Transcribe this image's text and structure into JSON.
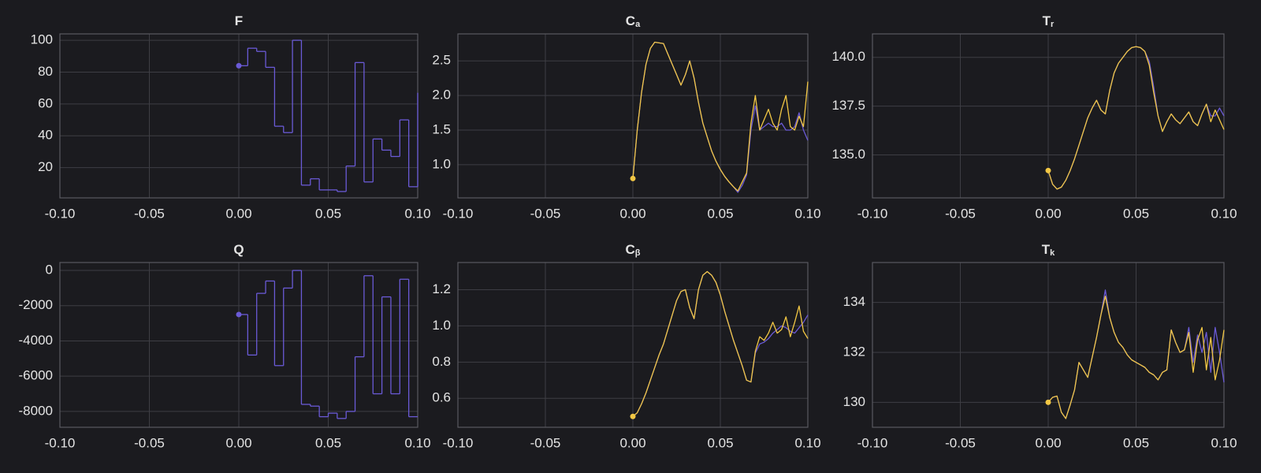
{
  "chart_data": [
    {
      "type": "line",
      "title": "F",
      "step": true,
      "x": [
        0,
        0.005,
        0.01,
        0.015,
        0.02,
        0.025,
        0.03,
        0.035,
        0.04,
        0.045,
        0.05,
        0.055,
        0.06,
        0.065,
        0.07,
        0.075,
        0.08,
        0.085,
        0.09,
        0.095,
        0.1
      ],
      "series": [
        {
          "color": "#6a5ad6",
          "values": [
            84,
            95,
            93,
            83,
            46,
            42,
            100,
            9,
            13,
            6,
            6,
            5,
            21,
            86,
            11,
            38,
            31,
            27,
            50,
            8,
            67
          ]
        }
      ],
      "xlim": [
        -0.1,
        0.1
      ],
      "xticks": [
        {
          "value": -0.1,
          "label": "-0.10"
        },
        -0.05,
        {
          "value": 0,
          "label": "0.00"
        },
        0.05,
        {
          "value": 0.1,
          "label": "0.10"
        }
      ],
      "ylim": [
        1,
        104
      ],
      "yticks": [
        20,
        40,
        60,
        80,
        100
      ],
      "grid": true
    },
    {
      "type": "line",
      "title": "C",
      "subscript": "a",
      "x": [
        0,
        0.0025,
        0.005,
        0.0075,
        0.01,
        0.0125,
        0.015,
        0.0175,
        0.02,
        0.0225,
        0.025,
        0.0275,
        0.03,
        0.0325,
        0.035,
        0.0375,
        0.04,
        0.0425,
        0.045,
        0.0475,
        0.05,
        0.0525,
        0.055,
        0.0575,
        0.06,
        0.0625,
        0.065,
        0.0675,
        0.07,
        0.0725,
        0.075,
        0.0775,
        0.08,
        0.0825,
        0.085,
        0.0875,
        0.09,
        0.0925,
        0.095,
        0.0975,
        0.1
      ],
      "series": [
        {
          "color": "#6a5ad6",
          "values": [
            0.8,
            1.5,
            2.05,
            2.45,
            2.68,
            2.77,
            2.76,
            2.75,
            2.6,
            2.45,
            2.3,
            2.15,
            2.3,
            2.5,
            2.25,
            1.9,
            1.6,
            1.4,
            1.2,
            1.05,
            0.93,
            0.83,
            0.75,
            0.68,
            0.6,
            0.7,
            0.85,
            1.5,
            1.85,
            1.5,
            1.55,
            1.6,
            1.55,
            1.55,
            1.6,
            1.5,
            1.5,
            1.55,
            1.75,
            1.5,
            1.35
          ]
        },
        {
          "color": "#f2c744",
          "values": [
            0.8,
            1.5,
            2.05,
            2.45,
            2.68,
            2.77,
            2.76,
            2.75,
            2.6,
            2.45,
            2.3,
            2.15,
            2.3,
            2.5,
            2.25,
            1.9,
            1.6,
            1.4,
            1.2,
            1.05,
            0.93,
            0.83,
            0.75,
            0.68,
            0.62,
            0.75,
            0.88,
            1.6,
            2.0,
            1.5,
            1.65,
            1.8,
            1.6,
            1.5,
            1.8,
            2.0,
            1.55,
            1.5,
            1.7,
            1.55,
            2.2
          ]
        }
      ],
      "xlim": [
        -0.1,
        0.1
      ],
      "xticks": [
        {
          "value": -0.1,
          "label": "-0.10"
        },
        -0.05,
        {
          "value": 0,
          "label": "0.00"
        },
        0.05,
        {
          "value": 0.1,
          "label": "0.10"
        }
      ],
      "ylim": [
        0.52,
        2.89
      ],
      "yticks": [
        {
          "value": 1,
          "label": "1.0"
        },
        1.5,
        {
          "value": 2,
          "label": "2.0"
        },
        2.5
      ],
      "grid": true
    },
    {
      "type": "line",
      "title": "T",
      "subscript": "r",
      "x": [
        0,
        0.0025,
        0.005,
        0.0075,
        0.01,
        0.0125,
        0.015,
        0.0175,
        0.02,
        0.0225,
        0.025,
        0.0275,
        0.03,
        0.0325,
        0.035,
        0.0375,
        0.04,
        0.0425,
        0.045,
        0.0475,
        0.05,
        0.0525,
        0.055,
        0.0575,
        0.06,
        0.0625,
        0.065,
        0.0675,
        0.07,
        0.0725,
        0.075,
        0.0775,
        0.08,
        0.0825,
        0.085,
        0.0875,
        0.09,
        0.0925,
        0.095,
        0.0975,
        0.1
      ],
      "series": [
        {
          "color": "#6a5ad6",
          "values": [
            134.2,
            133.5,
            133.25,
            133.35,
            133.7,
            134.2,
            134.8,
            135.5,
            136.2,
            136.9,
            137.4,
            137.8,
            137.3,
            137.1,
            138.3,
            139.2,
            139.7,
            140.0,
            140.3,
            140.5,
            140.55,
            140.5,
            140.3,
            139.8,
            138.5,
            137.0,
            136.2,
            136.7,
            137.1,
            136.8,
            136.6,
            136.9,
            137.2,
            136.7,
            136.5,
            137.1,
            137.6,
            137.0,
            137.0,
            137.4,
            137.0
          ]
        },
        {
          "color": "#f2c744",
          "values": [
            134.2,
            133.5,
            133.25,
            133.35,
            133.7,
            134.2,
            134.8,
            135.5,
            136.2,
            136.9,
            137.4,
            137.8,
            137.3,
            137.1,
            138.3,
            139.2,
            139.7,
            140.0,
            140.3,
            140.5,
            140.55,
            140.5,
            140.3,
            139.6,
            138.2,
            137.0,
            136.2,
            136.7,
            137.1,
            136.8,
            136.6,
            136.9,
            137.2,
            136.7,
            136.5,
            137.1,
            137.6,
            136.7,
            137.3,
            136.8,
            136.3
          ]
        }
      ],
      "xlim": [
        -0.1,
        0.1
      ],
      "xticks": [
        {
          "value": -0.1,
          "label": "-0.10"
        },
        -0.05,
        {
          "value": 0,
          "label": "0.00"
        },
        0.05,
        {
          "value": 0.1,
          "label": "0.10"
        }
      ],
      "ylim": [
        132.8,
        141.2
      ],
      "yticks": [
        {
          "value": 135,
          "label": "135.0"
        },
        137.5,
        {
          "value": 140,
          "label": "140.0"
        }
      ],
      "grid": true
    },
    {
      "type": "line",
      "title": "Q",
      "step": true,
      "x": [
        0,
        0.005,
        0.01,
        0.015,
        0.02,
        0.025,
        0.03,
        0.035,
        0.04,
        0.045,
        0.05,
        0.055,
        0.06,
        0.065,
        0.07,
        0.075,
        0.08,
        0.085,
        0.09,
        0.095,
        0.1
      ],
      "series": [
        {
          "color": "#6a5ad6",
          "values": [
            -2500,
            -4800,
            -1300,
            -600,
            -5400,
            -1000,
            0,
            -7600,
            -7700,
            -8300,
            -8100,
            -8400,
            -8000,
            -4900,
            -300,
            -7000,
            -1500,
            -7000,
            -500,
            -8300,
            -8300
          ]
        }
      ],
      "xlim": [
        -0.1,
        0.1
      ],
      "xticks": [
        {
          "value": -0.1,
          "label": "-0.10"
        },
        -0.05,
        {
          "value": 0,
          "label": "0.00"
        },
        0.05,
        {
          "value": 0.1,
          "label": "0.10"
        }
      ],
      "ylim": [
        -8900,
        450
      ],
      "yticks": [
        -8000,
        -6000,
        -4000,
        -2000,
        0
      ],
      "grid": true
    },
    {
      "type": "line",
      "title": "C",
      "subscript": "β",
      "x": [
        0,
        0.0025,
        0.005,
        0.0075,
        0.01,
        0.0125,
        0.015,
        0.0175,
        0.02,
        0.0225,
        0.025,
        0.0275,
        0.03,
        0.0325,
        0.035,
        0.0375,
        0.04,
        0.0425,
        0.045,
        0.0475,
        0.05,
        0.0525,
        0.055,
        0.0575,
        0.06,
        0.0625,
        0.065,
        0.0675,
        0.07,
        0.0725,
        0.075,
        0.0775,
        0.08,
        0.0825,
        0.085,
        0.0875,
        0.09,
        0.0925,
        0.095,
        0.0975,
        0.1
      ],
      "series": [
        {
          "color": "#6a5ad6",
          "values": [
            0.5,
            0.52,
            0.57,
            0.63,
            0.7,
            0.77,
            0.84,
            0.9,
            0.98,
            1.06,
            1.14,
            1.19,
            1.2,
            1.1,
            1.04,
            1.2,
            1.28,
            1.3,
            1.28,
            1.24,
            1.17,
            1.08,
            1.0,
            0.92,
            0.85,
            0.78,
            0.7,
            0.69,
            0.85,
            0.9,
            0.91,
            0.93,
            0.96,
            0.98,
            1.0,
            0.99,
            0.97,
            0.96,
            0.99,
            1.02,
            1.06
          ]
        },
        {
          "color": "#f2c744",
          "values": [
            0.5,
            0.52,
            0.57,
            0.63,
            0.7,
            0.77,
            0.84,
            0.9,
            0.98,
            1.06,
            1.14,
            1.19,
            1.2,
            1.1,
            1.04,
            1.2,
            1.28,
            1.3,
            1.28,
            1.24,
            1.17,
            1.08,
            1.0,
            0.92,
            0.85,
            0.78,
            0.7,
            0.69,
            0.86,
            0.94,
            0.92,
            0.96,
            1.02,
            0.96,
            0.98,
            1.05,
            0.94,
            1.02,
            1.11,
            0.97,
            0.93
          ]
        }
      ],
      "xlim": [
        -0.1,
        0.1
      ],
      "xticks": [
        {
          "value": -0.1,
          "label": "-0.10"
        },
        -0.05,
        {
          "value": 0,
          "label": "0.00"
        },
        0.05,
        {
          "value": 0.1,
          "label": "0.10"
        }
      ],
      "ylim": [
        0.44,
        1.35
      ],
      "yticks": [
        0.6,
        0.8,
        {
          "value": 1,
          "label": "1.0"
        },
        1.2
      ],
      "grid": true
    },
    {
      "type": "line",
      "title": "T",
      "subscript": "k",
      "x": [
        0,
        0.0025,
        0.005,
        0.0075,
        0.01,
        0.0125,
        0.015,
        0.0175,
        0.02,
        0.0225,
        0.025,
        0.0275,
        0.03,
        0.0325,
        0.035,
        0.0375,
        0.04,
        0.0425,
        0.045,
        0.0475,
        0.05,
        0.0525,
        0.055,
        0.0575,
        0.06,
        0.0625,
        0.065,
        0.0675,
        0.07,
        0.0725,
        0.075,
        0.0775,
        0.08,
        0.0825,
        0.085,
        0.0875,
        0.09,
        0.0925,
        0.095,
        0.0975,
        0.1
      ],
      "series": [
        {
          "color": "#6a5ad6",
          "values": [
            130,
            130.2,
            130.25,
            129.6,
            129.35,
            129.9,
            130.5,
            131.6,
            131.3,
            131.0,
            131.8,
            132.6,
            133.5,
            134.5,
            133.4,
            132.8,
            132.4,
            132.2,
            131.9,
            131.7,
            131.6,
            131.5,
            131.4,
            131.2,
            131.1,
            130.9,
            131.2,
            131.3,
            132.9,
            132.4,
            132.0,
            132.1,
            133.0,
            131.6,
            132.7,
            132.0,
            132.8,
            131.2,
            133.0,
            132.0,
            130.8
          ]
        },
        {
          "color": "#f2c744",
          "values": [
            130,
            130.2,
            130.25,
            129.6,
            129.35,
            129.9,
            130.5,
            131.6,
            131.3,
            131.0,
            131.8,
            132.6,
            133.5,
            134.25,
            133.4,
            132.8,
            132.4,
            132.2,
            131.9,
            131.7,
            131.6,
            131.5,
            131.4,
            131.2,
            131.1,
            130.9,
            131.2,
            131.3,
            132.9,
            132.4,
            132.0,
            132.1,
            132.8,
            131.2,
            132.5,
            133.0,
            131.3,
            132.6,
            130.9,
            131.7,
            132.9
          ]
        }
      ],
      "xlim": [
        -0.1,
        0.1
      ],
      "xticks": [
        {
          "value": -0.1,
          "label": "-0.10"
        },
        -0.05,
        {
          "value": 0,
          "label": "0.00"
        },
        0.05,
        {
          "value": 0.1,
          "label": "0.10"
        }
      ],
      "ylim": [
        129,
        135.6
      ],
      "yticks": [
        130,
        132,
        134
      ],
      "grid": true
    }
  ]
}
